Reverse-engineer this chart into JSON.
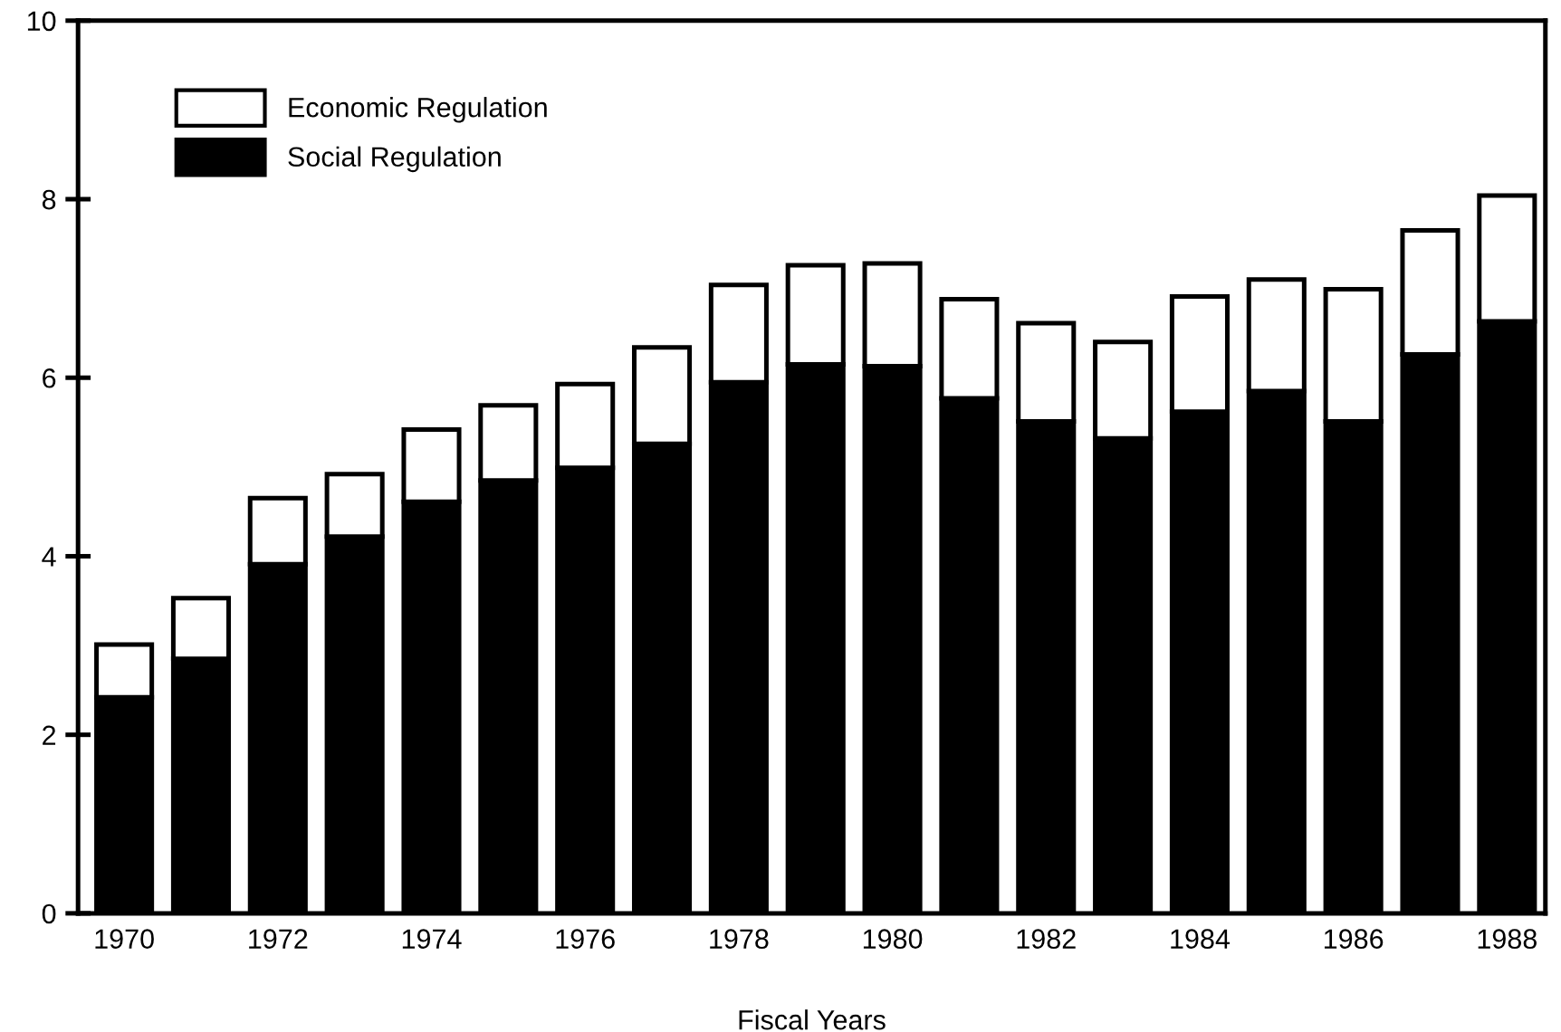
{
  "chart_data": {
    "type": "bar",
    "stacked": true,
    "xlabel": "Fiscal Years",
    "categories": [
      "1970",
      null,
      "1972",
      null,
      "1974",
      null,
      "1976",
      null,
      "1978",
      null,
      "1980",
      null,
      "1982",
      null,
      "1984",
      null,
      "1986",
      null,
      "1988"
    ],
    "series": [
      {
        "name": "Social Regulation",
        "color": "#000000",
        "values": [
          2.42,
          2.85,
          3.91,
          4.22,
          4.61,
          4.85,
          4.99,
          5.26,
          5.95,
          6.15,
          6.13,
          5.77,
          5.51,
          5.32,
          5.62,
          5.85,
          5.51,
          6.26,
          6.63
        ]
      },
      {
        "name": "Economic Regulation",
        "color": "#ffffff",
        "values": [
          0.59,
          0.68,
          0.74,
          0.7,
          0.81,
          0.84,
          0.94,
          1.08,
          1.09,
          1.11,
          1.15,
          1.11,
          1.1,
          1.08,
          1.29,
          1.25,
          1.48,
          1.39,
          1.41
        ]
      }
    ],
    "ylim": [
      0,
      10
    ],
    "yticks": [
      0,
      2,
      4,
      6,
      8,
      10
    ],
    "grid": false,
    "legend": "top left"
  }
}
